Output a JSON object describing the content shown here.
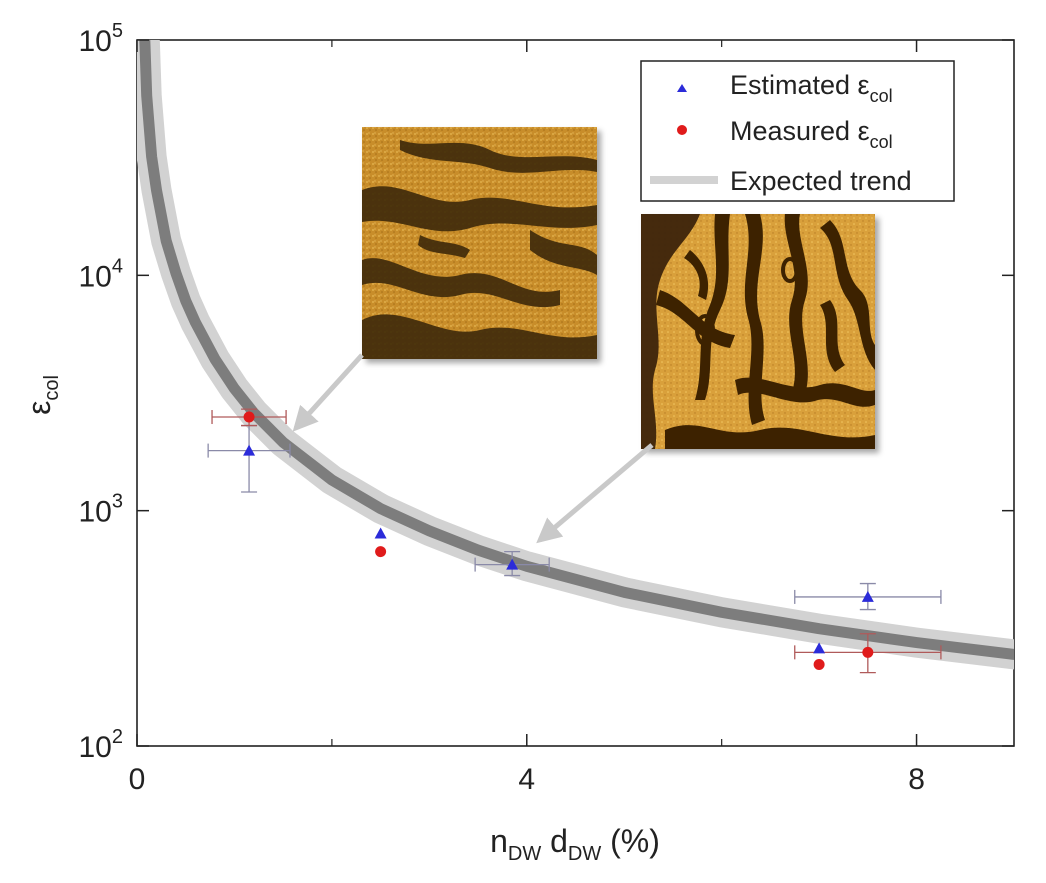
{
  "chart_data": {
    "type": "scatter",
    "xscale": "linear",
    "yscale": "log",
    "xlim": [
      0,
      9
    ],
    "ylim": [
      100,
      100000
    ],
    "xlabel": {
      "main": "n",
      "sub1": "DW",
      "mid": " d",
      "sub2": "DW",
      "tail": " (%)"
    },
    "ylabel": {
      "main": "ε",
      "sub": "col"
    },
    "x_ticks": [
      {
        "value": 0,
        "label": "0"
      },
      {
        "value": 4,
        "label": "4"
      },
      {
        "value": 8,
        "label": "8"
      }
    ],
    "x_minor_ticks": [
      2,
      6
    ],
    "y_ticks": [
      {
        "value": 100,
        "base": "10",
        "exp": "2"
      },
      {
        "value": 1000,
        "base": "10",
        "exp": "3"
      },
      {
        "value": 10000,
        "base": "10",
        "exp": "4"
      },
      {
        "value": 100000,
        "base": "10",
        "exp": "5"
      }
    ],
    "series": [
      {
        "name": "Estimated",
        "legend_label": {
          "main": "Estimated ε",
          "sub": "col"
        },
        "marker": "triangle",
        "color": "#2b2bd9",
        "errorbar_color": "#8a8aa8",
        "points": [
          {
            "x": 1.15,
            "y": 1800,
            "xerr": 0.42,
            "ylow": 1200,
            "yhigh": 2300
          },
          {
            "x": 2.5,
            "y": 800
          },
          {
            "x": 3.85,
            "y": 590,
            "xerr": 0.38,
            "ylow": 530,
            "yhigh": 670
          },
          {
            "x": 7.0,
            "y": 260
          },
          {
            "x": 7.5,
            "y": 430,
            "xerr": 0.75,
            "ylow": 380,
            "yhigh": 490
          }
        ]
      },
      {
        "name": "Measured",
        "legend_label": {
          "main": "Measured ε",
          "sub": "col"
        },
        "marker": "circle",
        "color": "#e01b1b",
        "errorbar_color": "#b05a5a",
        "points": [
          {
            "x": 1.15,
            "y": 2500,
            "xerr": 0.38,
            "ylow": 2300,
            "yhigh": 2700
          },
          {
            "x": 2.5,
            "y": 670
          },
          {
            "x": 7.0,
            "y": 222
          },
          {
            "x": 7.5,
            "y": 250,
            "xerr": 0.75,
            "ylow": 205,
            "yhigh": 300
          }
        ]
      },
      {
        "name": "Expected trend",
        "legend_label": {
          "main": "Expected trend",
          "sub": ""
        },
        "type": "band",
        "outer_color": "#d2d2d2",
        "inner_color": "#7d7d7d",
        "points": [
          {
            "x": 0.08,
            "y": 100000
          },
          {
            "x": 0.1,
            "y": 58000
          },
          {
            "x": 0.15,
            "y": 32000
          },
          {
            "x": 0.2,
            "y": 23000
          },
          {
            "x": 0.3,
            "y": 14000
          },
          {
            "x": 0.4,
            "y": 10200
          },
          {
            "x": 0.5,
            "y": 7800
          },
          {
            "x": 0.6,
            "y": 6300
          },
          {
            "x": 0.8,
            "y": 4400
          },
          {
            "x": 1.0,
            "y": 3300
          },
          {
            "x": 1.2,
            "y": 2600
          },
          {
            "x": 1.5,
            "y": 1950
          },
          {
            "x": 2.0,
            "y": 1350
          },
          {
            "x": 2.5,
            "y": 1020
          },
          {
            "x": 3.0,
            "y": 820
          },
          {
            "x": 3.5,
            "y": 680
          },
          {
            "x": 4.0,
            "y": 580
          },
          {
            "x": 5.0,
            "y": 450
          },
          {
            "x": 6.0,
            "y": 370
          },
          {
            "x": 7.0,
            "y": 315
          },
          {
            "x": 8.0,
            "y": 275
          },
          {
            "x": 9.0,
            "y": 245
          }
        ]
      }
    ],
    "insets": [
      {
        "name": "inset-domain-image-low-density",
        "description_color_dark": "#4a3208",
        "description_color_light": "#d9a238",
        "arrow_target": {
          "x": 1.55,
          "y": 2150
        }
      },
      {
        "name": "inset-domain-image-high-density",
        "description_color_dark": "#3a2205",
        "description_color_light": "#e3ac3f",
        "arrow_target": {
          "x": 4.05,
          "y": 700
        }
      }
    ],
    "legend_position": "top-right"
  }
}
